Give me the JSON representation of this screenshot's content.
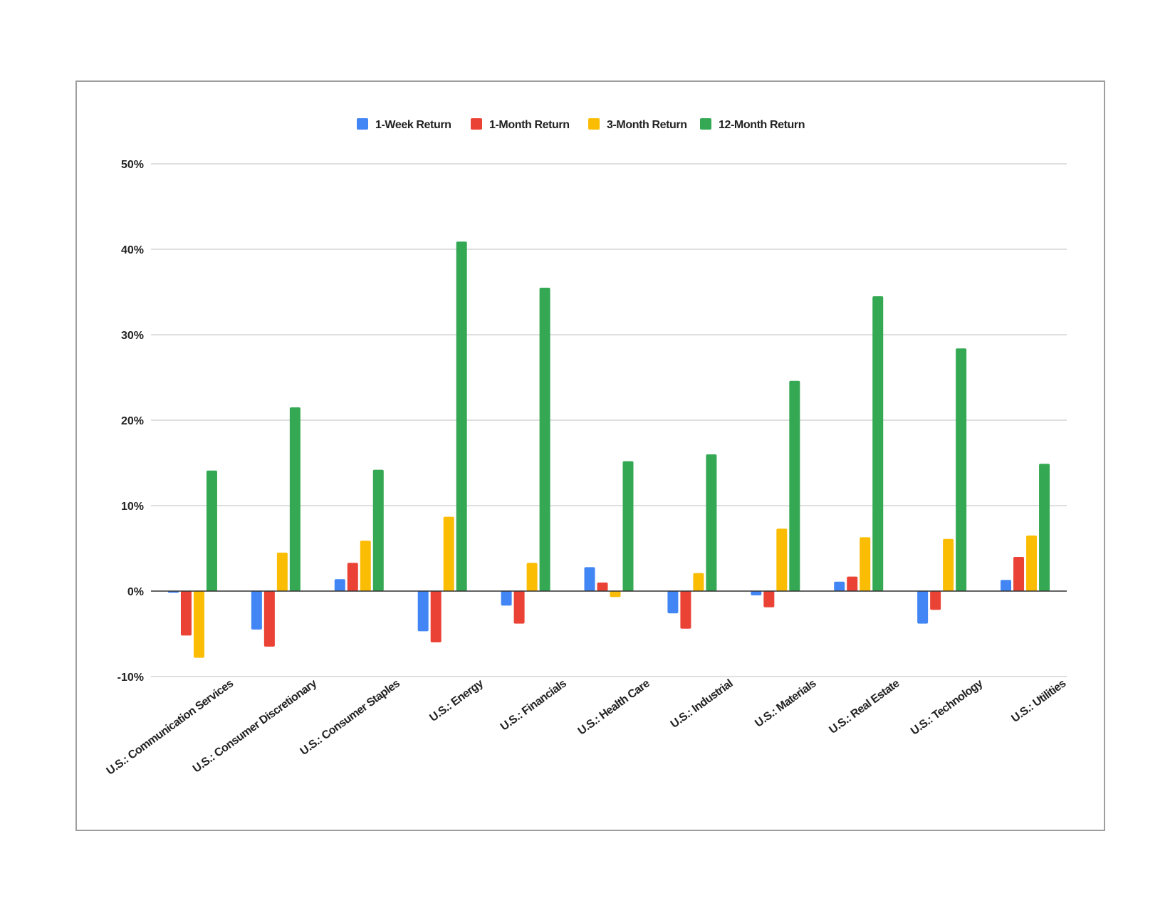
{
  "chart_data": {
    "type": "bar",
    "title": "",
    "xlabel": "",
    "ylabel": "",
    "ylim": [
      -10,
      50
    ],
    "yticks": [
      -10,
      0,
      10,
      20,
      30,
      40,
      50
    ],
    "ytick_labels": [
      "-10%",
      "0%",
      "10%",
      "20%",
      "30%",
      "40%",
      "50%"
    ],
    "grid": true,
    "legend_position": "top",
    "categories": [
      "U.S.: Communication Services",
      "U.S.: Consumer Discretionary",
      "U.S.: Consumer Staples",
      "U.S.: Energy",
      "U.S.: Financials",
      "U.S.: Health Care",
      "U.S.: Industrial",
      "U.S.: Materials",
      "U.S.: Real Estate",
      "U.S.: Technology",
      "U.S.: Utilities"
    ],
    "series": [
      {
        "name": "1-Week Return",
        "color": "#4285f4",
        "values": [
          -0.2,
          -4.5,
          1.4,
          -4.7,
          -1.7,
          2.8,
          -2.6,
          -0.5,
          1.1,
          -3.8,
          1.3
        ]
      },
      {
        "name": "1-Month Return",
        "color": "#ea4335",
        "values": [
          -5.2,
          -6.5,
          3.3,
          -6.0,
          -3.8,
          1.0,
          -4.4,
          -1.9,
          1.7,
          -2.2,
          4.0
        ]
      },
      {
        "name": "3-Month Return",
        "color": "#fbbc04",
        "values": [
          -7.8,
          4.5,
          5.9,
          8.7,
          3.3,
          -0.7,
          2.1,
          7.3,
          6.3,
          6.1,
          6.5
        ]
      },
      {
        "name": "12-Month Return",
        "color": "#34a853",
        "values": [
          14.1,
          21.5,
          14.2,
          40.9,
          35.5,
          15.2,
          16.0,
          24.6,
          34.5,
          28.4,
          14.9
        ]
      }
    ]
  }
}
